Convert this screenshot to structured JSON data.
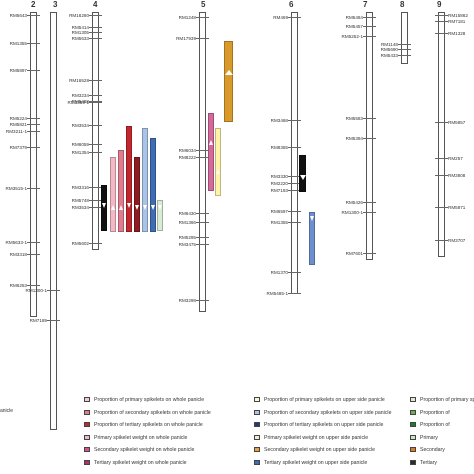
{
  "chromosomes": [
    {
      "number": "2",
      "markers": [
        "RM5643",
        "RM1355",
        "RM5897",
        "RM5224",
        "RM5821",
        "RM3211-1",
        "RM7379",
        "RM3515-1",
        "RM5633-1",
        "RM3318",
        "RM6253"
      ]
    },
    {
      "number": "3",
      "markers": [
        "RM1300-1",
        "RM7189"
      ]
    },
    {
      "number": "4",
      "markers": [
        "RM16280",
        "RM5414",
        "RM1305",
        "RM5633",
        "RM16528",
        "RM3234",
        "RM5488",
        "RM3359-1",
        "RM3534",
        "RM6059",
        "RM1354",
        "RM3316",
        "RM5748",
        "RM3534",
        "RM5602"
      ]
    },
    {
      "number": "5",
      "markers": [
        "RM1248",
        "RM17939",
        "RM6034",
        "RM8222",
        "RM6430",
        "RM1366",
        "RM5295",
        "RM3475",
        "RM3298"
      ]
    },
    {
      "number": "6",
      "markers": [
        "RM469",
        "RM3468",
        "RM8355",
        "RM3330",
        "RM2220",
        "RM7193",
        "RM6597",
        "RM1355",
        "RM1370",
        "RM5485-1"
      ]
    },
    {
      "number": "7",
      "markers": [
        "RM5484",
        "RM5457",
        "RM5252-1",
        "RM5583",
        "RM5394",
        "RM5426",
        "RM1300-1",
        "RM7601"
      ]
    },
    {
      "number": "8",
      "markers": [
        "RM1148",
        "RM5690",
        "RM5433"
      ]
    },
    {
      "number": "9",
      "markers": [
        "RM15862",
        "RM7181",
        "RM1328",
        "RM5857",
        "RM257",
        "RM3808",
        "RM5871",
        "RM3707"
      ]
    }
  ],
  "qtls": [
    {
      "name": "qtl-4-black",
      "color": "#111111"
    },
    {
      "name": "qtl-4-light-pink",
      "color": "#f2b8c4"
    },
    {
      "name": "qtl-4-pink",
      "color": "#e17b8e"
    },
    {
      "name": "qtl-4-red",
      "color": "#c1272d"
    },
    {
      "name": "qtl-4-dark-red",
      "color": "#8e1b22"
    },
    {
      "name": "qtl-4-light-blue",
      "color": "#a9c4e6"
    },
    {
      "name": "qtl-4-blue",
      "color": "#3f6db4"
    },
    {
      "name": "qtl-4-dark-blue",
      "color": "#1f3a78"
    },
    {
      "name": "qtl-4-light-green",
      "color": "#d9ecd3"
    },
    {
      "name": "qtl-5-magenta",
      "color": "#d46a9c"
    },
    {
      "name": "qtl-5-yellow",
      "color": "#fff3a8"
    },
    {
      "name": "qtl-5-orange",
      "color": "#d99a2b"
    },
    {
      "name": "qtl-6-black",
      "color": "#111111"
    },
    {
      "name": "qtl-6-blue",
      "color": "#6d8fcf"
    }
  ],
  "legend": [
    {
      "label": "Proportion of primary spikelets on whole panicle",
      "color": "#f6c9d2"
    },
    {
      "label": "Proportion of secondary spikelets on whole panicle",
      "color": "#e17b8e"
    },
    {
      "label": "Proportion of tertiary spikelets on whole panicle",
      "color": "#c1272d"
    },
    {
      "label": "Primary spikelet weight on whole panicle",
      "color": "#f2b8c4"
    },
    {
      "label": "Secondary spikelet weight on whole panicle",
      "color": "#d94f87"
    },
    {
      "label": "Tertiary spikelet weight on whole panicle",
      "color": "#b0316e"
    },
    {
      "label": "Proportion of primary spikelets on upper side panicle",
      "color": "#fff6cc"
    },
    {
      "label": "Proportion of secondary spikelets on upper side panicle",
      "color": "#a9c4e6"
    },
    {
      "label": "Proportion of tertiary spikelets on upper side panicle",
      "color": "#1f3a78"
    },
    {
      "label": "Primary spikelet weight on upper side panicle",
      "color": "#fbe9d0"
    },
    {
      "label": "Secondary spikelet weight on upper side panicle",
      "color": "#e7a23b"
    },
    {
      "label": "Tertiary spikelet weight on upper side panicle",
      "color": "#3f6db4"
    },
    {
      "label": "Proportion of primary spikelets on",
      "color": "#d9ecd3"
    },
    {
      "label": "Proportion of",
      "color": "#6ab04c"
    },
    {
      "label": "Proportion of",
      "color": "#1e7b2e"
    },
    {
      "label": "Primary",
      "color": "#c8e6c0"
    },
    {
      "label": "Secondary",
      "color": "#e07b1f"
    },
    {
      "label": "Tertiary",
      "color": "#2c2c2c"
    }
  ],
  "left_edge_label": "anicle"
}
